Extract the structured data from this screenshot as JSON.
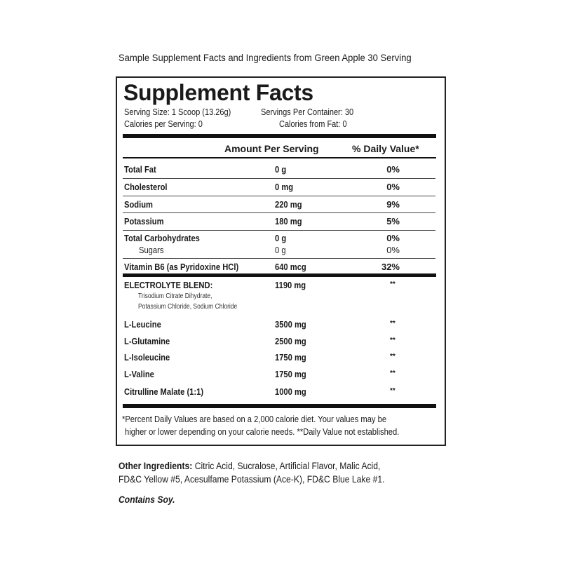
{
  "caption": "Sample Supplement Facts and Ingredients from Green Apple 30 Serving",
  "label": {
    "title": "Supplement Facts",
    "serving_size": "Serving Size: 1 Scoop (13.26g)",
    "servings_per_container": "Servings Per Container: 30",
    "calories": "Calories per Serving: 0",
    "calories_from_fat": "Calories from Fat: 0",
    "col_amount": "Amount Per Serving",
    "col_dv": "% Daily Value*",
    "nutrients": [
      {
        "name": "Total Fat",
        "amount": "0 g",
        "dv": "0%"
      },
      {
        "name": "Cholesterol",
        "amount": "0 mg",
        "dv": "0%"
      },
      {
        "name": "Sodium",
        "amount": "220 mg",
        "dv": "9%"
      },
      {
        "name": "Potassium",
        "amount": "180 mg",
        "dv": "5%"
      },
      {
        "name": "Total Carbohydrates",
        "amount": "0 g",
        "dv": "0%"
      },
      {
        "name": "Sugars",
        "amount": "0 g",
        "dv": "0%"
      },
      {
        "name": "Vitamin B6 (as Pyridoxine HCl)",
        "amount": "640 mcg",
        "dv": "32%"
      }
    ],
    "blend": {
      "name": "ELECTROLYTE BLEND:",
      "amount": "1190 mg",
      "dv": "**",
      "ingredients_line1": "Trisodium Citrate Dihydrate,",
      "ingredients_line2": "Potassium Chloride, Sodium Chloride"
    },
    "others": [
      {
        "name": "L-Leucine",
        "amount": "3500 mg",
        "dv": "**"
      },
      {
        "name": "L-Glutamine",
        "amount": "2500 mg",
        "dv": "**"
      },
      {
        "name": "L-Isoleucine",
        "amount": "1750 mg",
        "dv": "**"
      },
      {
        "name": "L-Valine",
        "amount": "1750 mg",
        "dv": "**"
      },
      {
        "name": "Citrulline Malate (1:1)",
        "amount": "1000 mg",
        "dv": "**"
      }
    ],
    "footnote_line1": "*Percent Daily Values are based on a 2,000 calorie diet. Your values may be",
    "footnote_line2": "higher or lower depending on your calorie needs. **Daily Value not established."
  },
  "other_ingredients": {
    "label": "Other Ingredients:",
    "line1": " Citric Acid, Sucralose, Artificial Flavor, Malic Acid,",
    "line2": "FD&C Yellow #5, Acesulfame Potassium (Ace-K), FD&C Blue Lake #1."
  },
  "allergen": "Contains Soy."
}
